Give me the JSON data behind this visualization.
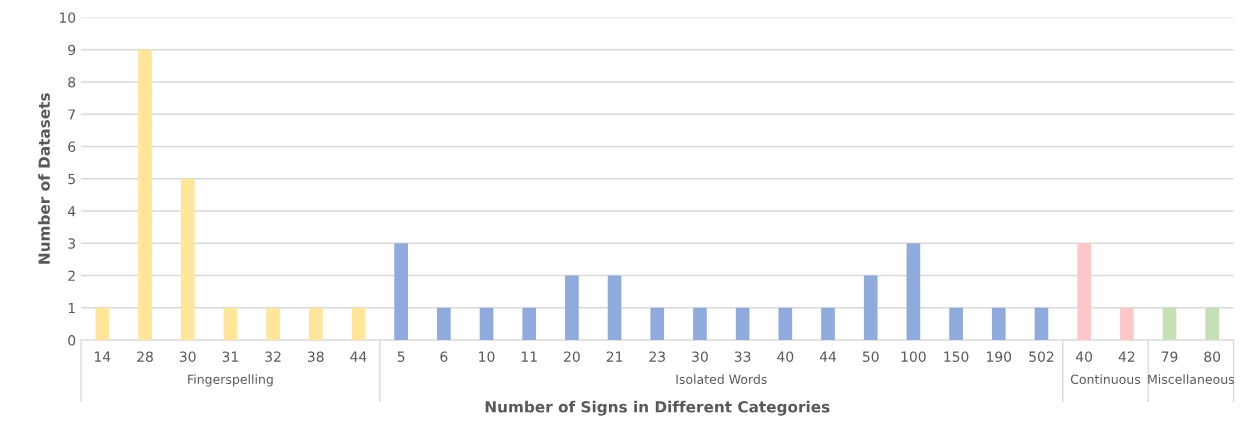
{
  "chart_data": {
    "type": "bar",
    "xlabel": "Number of Signs in Different Categories",
    "ylabel": "Number of Datasets",
    "categories": [
      "14",
      "28",
      "30",
      "31",
      "32",
      "38",
      "44",
      "5",
      "6",
      "10",
      "11",
      "20",
      "21",
      "23",
      "30",
      "33",
      "40",
      "44",
      "50",
      "100",
      "150",
      "190",
      "502",
      "40",
      "42",
      "79",
      "80"
    ],
    "series": [
      {
        "name": "Fingerspelling",
        "color": "#ffe699",
        "values": [
          1,
          9,
          5,
          1,
          1,
          1,
          1,
          null,
          null,
          null,
          null,
          null,
          null,
          null,
          null,
          null,
          null,
          null,
          null,
          null,
          null,
          null,
          null,
          null,
          null,
          null,
          null
        ]
      },
      {
        "name": "Isolated Words",
        "color": "#8faadc",
        "values": [
          null,
          null,
          null,
          null,
          null,
          null,
          null,
          3,
          1,
          1,
          1,
          2,
          2,
          1,
          1,
          1,
          1,
          1,
          2,
          3,
          1,
          1,
          1,
          null,
          null,
          null,
          null
        ]
      },
      {
        "name": "Continuous",
        "color": "#ffc7c7",
        "values": [
          null,
          null,
          null,
          null,
          null,
          null,
          null,
          null,
          null,
          null,
          null,
          null,
          null,
          null,
          null,
          null,
          null,
          null,
          null,
          null,
          null,
          null,
          null,
          3,
          1,
          null,
          null
        ]
      },
      {
        "name": "Miscellaneous",
        "color": "#c5e0b4",
        "values": [
          null,
          null,
          null,
          null,
          null,
          null,
          null,
          null,
          null,
          null,
          null,
          null,
          null,
          null,
          null,
          null,
          null,
          null,
          null,
          null,
          null,
          null,
          null,
          null,
          null,
          1,
          1
        ]
      }
    ],
    "ylim": [
      0,
      10
    ],
    "yticks": [
      0,
      1,
      2,
      3,
      4,
      5,
      6,
      7,
      8,
      9,
      10
    ],
    "grid": "y",
    "legend": false
  }
}
